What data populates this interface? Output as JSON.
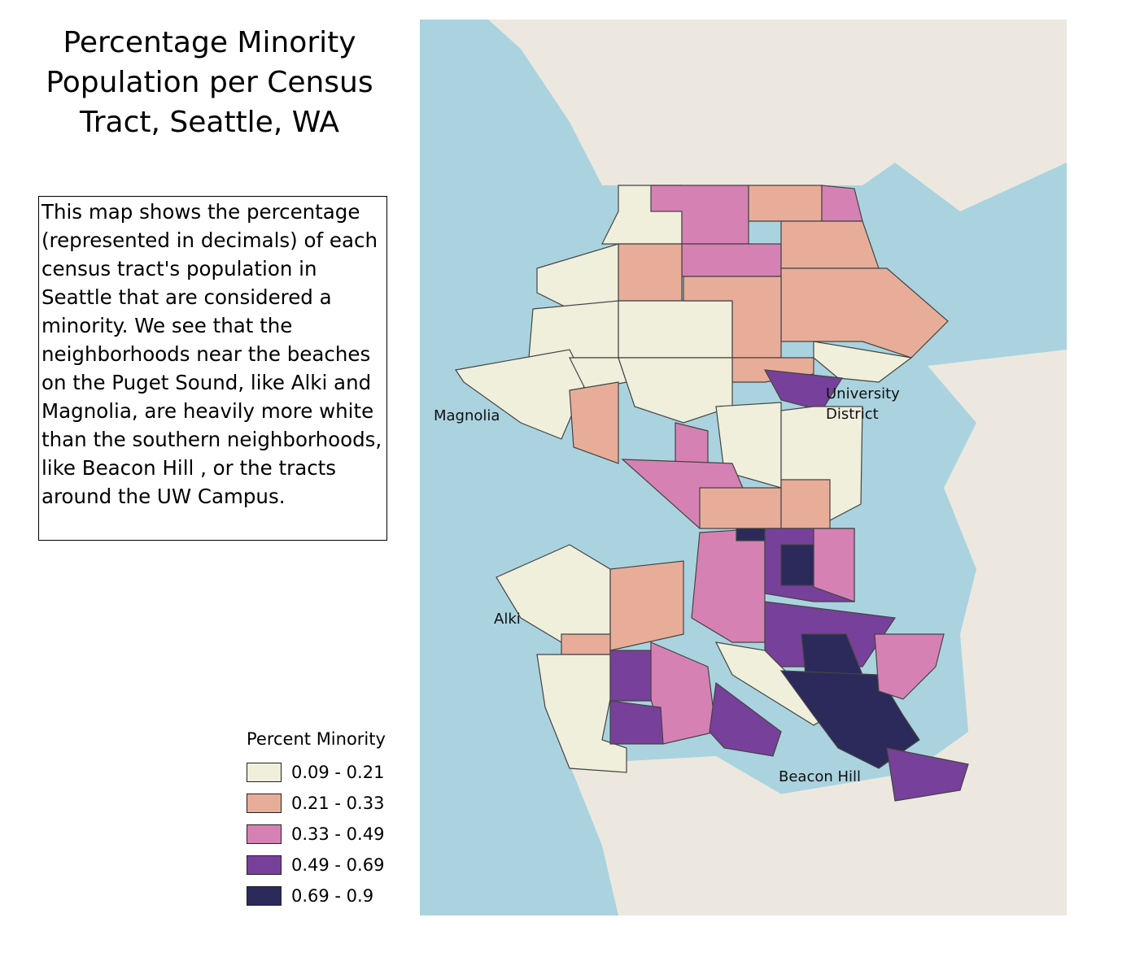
{
  "title": "Percentage Minority Population per Census Tract, Seattle, WA",
  "description": "This map shows the percentage (represented in decimals) of each census tract's population in Seattle that are considered a minority. We see that the neighborhoods near the beaches on the Puget Sound, like Alki and Magnolia, are heavily more white than the southern neighborhoods, like Beacon Hill , or the tracts around the UW Campus.",
  "legend": {
    "title": "Percent Minority",
    "items": [
      {
        "label": "0.09 - 0.21",
        "color": "#efefdc"
      },
      {
        "label": "0.21 - 0.33",
        "color": "#e8ad98"
      },
      {
        "label": "0.33 - 0.49",
        "color": "#d681b3"
      },
      {
        "label": "0.49 - 0.69",
        "color": "#77409a"
      },
      {
        "label": "0.69 - 0.9",
        "color": "#2c2a5a"
      }
    ]
  },
  "map_labels": [
    "Magnolia",
    "University District",
    "Alki",
    "Beacon Hill"
  ]
}
